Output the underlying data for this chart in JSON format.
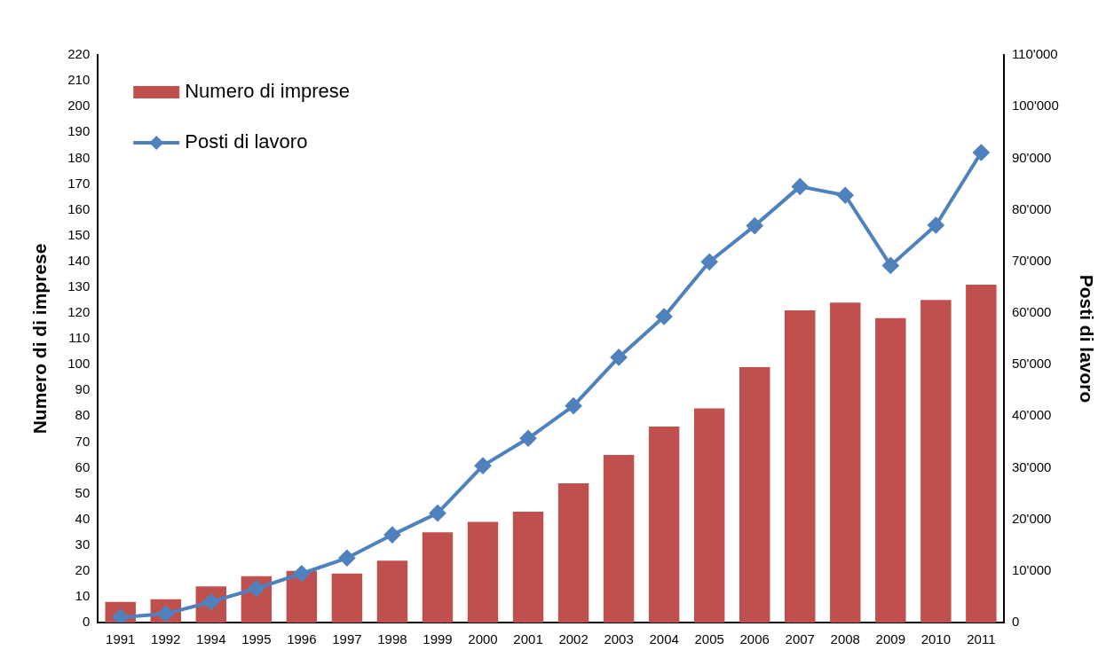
{
  "chart_data": {
    "type": "bar",
    "categories": [
      "1991",
      "1992",
      "1994",
      "1995",
      "1996",
      "1997",
      "1998",
      "1999",
      "2000",
      "2001",
      "2002",
      "2003",
      "2004",
      "2005",
      "2006",
      "2007",
      "2008",
      "2009",
      "2010",
      "2011"
    ],
    "series": [
      {
        "name": "Numero di imprese",
        "color": "#c0504d",
        "values": [
          8,
          9,
          14,
          18,
          20,
          19,
          24,
          35,
          39,
          43,
          54,
          65,
          76,
          83,
          99,
          121,
          124,
          118,
          125,
          131
        ]
      },
      {
        "name": "Posti di lavoro",
        "type": "line",
        "axis": "y2",
        "color": "#4f81bd",
        "values": [
          1000,
          1700,
          4000,
          6600,
          9500,
          12500,
          17000,
          21200,
          30400,
          35700,
          42000,
          51400,
          59300,
          69900,
          76900,
          84500,
          82800,
          69200,
          77000,
          91100
        ]
      }
    ],
    "ylabel": "Numero di di imprese",
    "y2label": "Posti di lavoro",
    "ylim": [
      0,
      220
    ],
    "yticks": [
      0,
      10,
      20,
      30,
      40,
      50,
      60,
      70,
      80,
      90,
      100,
      110,
      120,
      130,
      140,
      150,
      160,
      170,
      180,
      190,
      200,
      210,
      220
    ],
    "y2lim": [
      0,
      110000
    ],
    "y2ticks": [
      0,
      {
        "value": 10000,
        "label": "10'000"
      },
      {
        "value": 20000,
        "label": "20'000"
      },
      {
        "value": 30000,
        "label": "30'000"
      },
      {
        "value": 40000,
        "label": "40'000"
      },
      {
        "value": 50000,
        "label": "50'000"
      },
      {
        "value": 60000,
        "label": "60'000"
      },
      {
        "value": 70000,
        "label": "70'000"
      },
      {
        "value": 80000,
        "label": "80'000"
      },
      {
        "value": 90000,
        "label": "90'000"
      },
      {
        "value": 100000,
        "label": "100'000"
      },
      {
        "value": 110000,
        "label": "110'000"
      }
    ],
    "grid": false,
    "legend": "top left",
    "marker": "diamond",
    "line_style": "solid"
  }
}
